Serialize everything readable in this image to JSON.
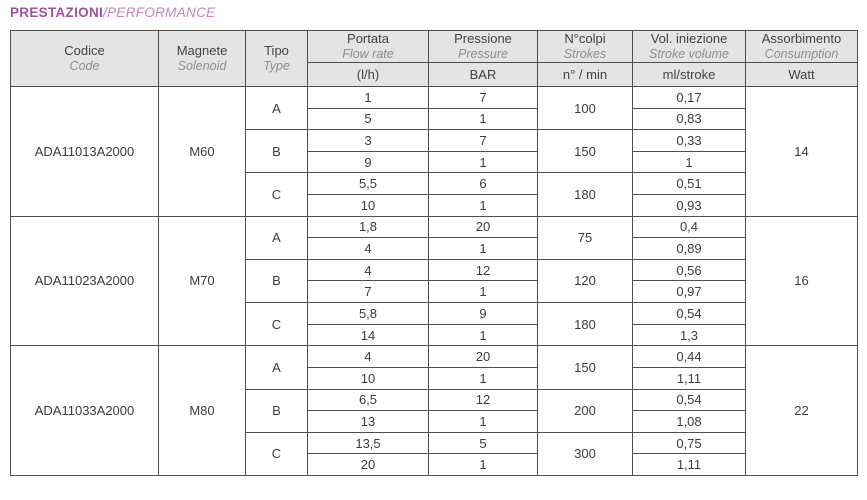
{
  "title": {
    "main": "PRESTAZIONI",
    "sub": "/PERFORMANCE"
  },
  "colors": {
    "title_main": "#9f529b",
    "title_sub": "#c286bd",
    "header_bg": "#e3e4e3",
    "border": "#4f4f4f",
    "text": "#3c3c3c",
    "text_muted": "#8e8e8e"
  },
  "header": {
    "codice": {
      "it": "Codice",
      "en": "Code"
    },
    "magnete": {
      "it": "Magnete",
      "en": "Solenoid"
    },
    "tipo": {
      "it": "Tipo",
      "en": "Type"
    },
    "portata": {
      "it": "Portata",
      "en": "Flow rate",
      "unit": "(l/h)"
    },
    "pressione": {
      "it": "Pressione",
      "en": "Pressure",
      "unit": "BAR"
    },
    "colpi": {
      "it": "N°colpi",
      "en": "Strokes",
      "unit": "n° / min"
    },
    "vol": {
      "it": "Vol. iniezione",
      "en": "Stroke volume",
      "unit": "ml/stroke"
    },
    "assorbimento": {
      "it": "Assorbimento",
      "en": "Consumption",
      "unit": "Watt"
    }
  },
  "blocks": [
    {
      "code": "ADA11013A2000",
      "solenoid": "M60",
      "watt": "14",
      "types": [
        {
          "type": "A",
          "strokes": "100",
          "rows": [
            {
              "flow": "1",
              "pressure": "7",
              "vol": "0,17"
            },
            {
              "flow": "5",
              "pressure": "1",
              "vol": "0,83"
            }
          ]
        },
        {
          "type": "B",
          "strokes": "150",
          "rows": [
            {
              "flow": "3",
              "pressure": "7",
              "vol": "0,33"
            },
            {
              "flow": "9",
              "pressure": "1",
              "vol": "1"
            }
          ]
        },
        {
          "type": "C",
          "strokes": "180",
          "rows": [
            {
              "flow": "5,5",
              "pressure": "6",
              "vol": "0,51"
            },
            {
              "flow": "10",
              "pressure": "1",
              "vol": "0,93"
            }
          ]
        }
      ]
    },
    {
      "code": "ADA11023A2000",
      "solenoid": "M70",
      "watt": "16",
      "types": [
        {
          "type": "A",
          "strokes": "75",
          "rows": [
            {
              "flow": "1,8",
              "pressure": "20",
              "vol": "0,4"
            },
            {
              "flow": "4",
              "pressure": "1",
              "vol": "0,89"
            }
          ]
        },
        {
          "type": "B",
          "strokes": "120",
          "rows": [
            {
              "flow": "4",
              "pressure": "12",
              "vol": "0,56"
            },
            {
              "flow": "7",
              "pressure": "1",
              "vol": "0,97"
            }
          ]
        },
        {
          "type": "C",
          "strokes": "180",
          "rows": [
            {
              "flow": "5,8",
              "pressure": "9",
              "vol": "0,54"
            },
            {
              "flow": "14",
              "pressure": "1",
              "vol": "1,3"
            }
          ]
        }
      ]
    },
    {
      "code": "ADA11033A2000",
      "solenoid": "M80",
      "watt": "22",
      "types": [
        {
          "type": "A",
          "strokes": "150",
          "rows": [
            {
              "flow": "4",
              "pressure": "20",
              "vol": "0,44"
            },
            {
              "flow": "10",
              "pressure": "1",
              "vol": "1,11"
            }
          ]
        },
        {
          "type": "B",
          "strokes": "200",
          "rows": [
            {
              "flow": "6,5",
              "pressure": "12",
              "vol": "0,54"
            },
            {
              "flow": "13",
              "pressure": "1",
              "vol": "1,08"
            }
          ]
        },
        {
          "type": "C",
          "strokes": "300",
          "rows": [
            {
              "flow": "13,5",
              "pressure": "5",
              "vol": "0,75"
            },
            {
              "flow": "20",
              "pressure": "1",
              "vol": "1,11"
            }
          ]
        }
      ]
    }
  ]
}
